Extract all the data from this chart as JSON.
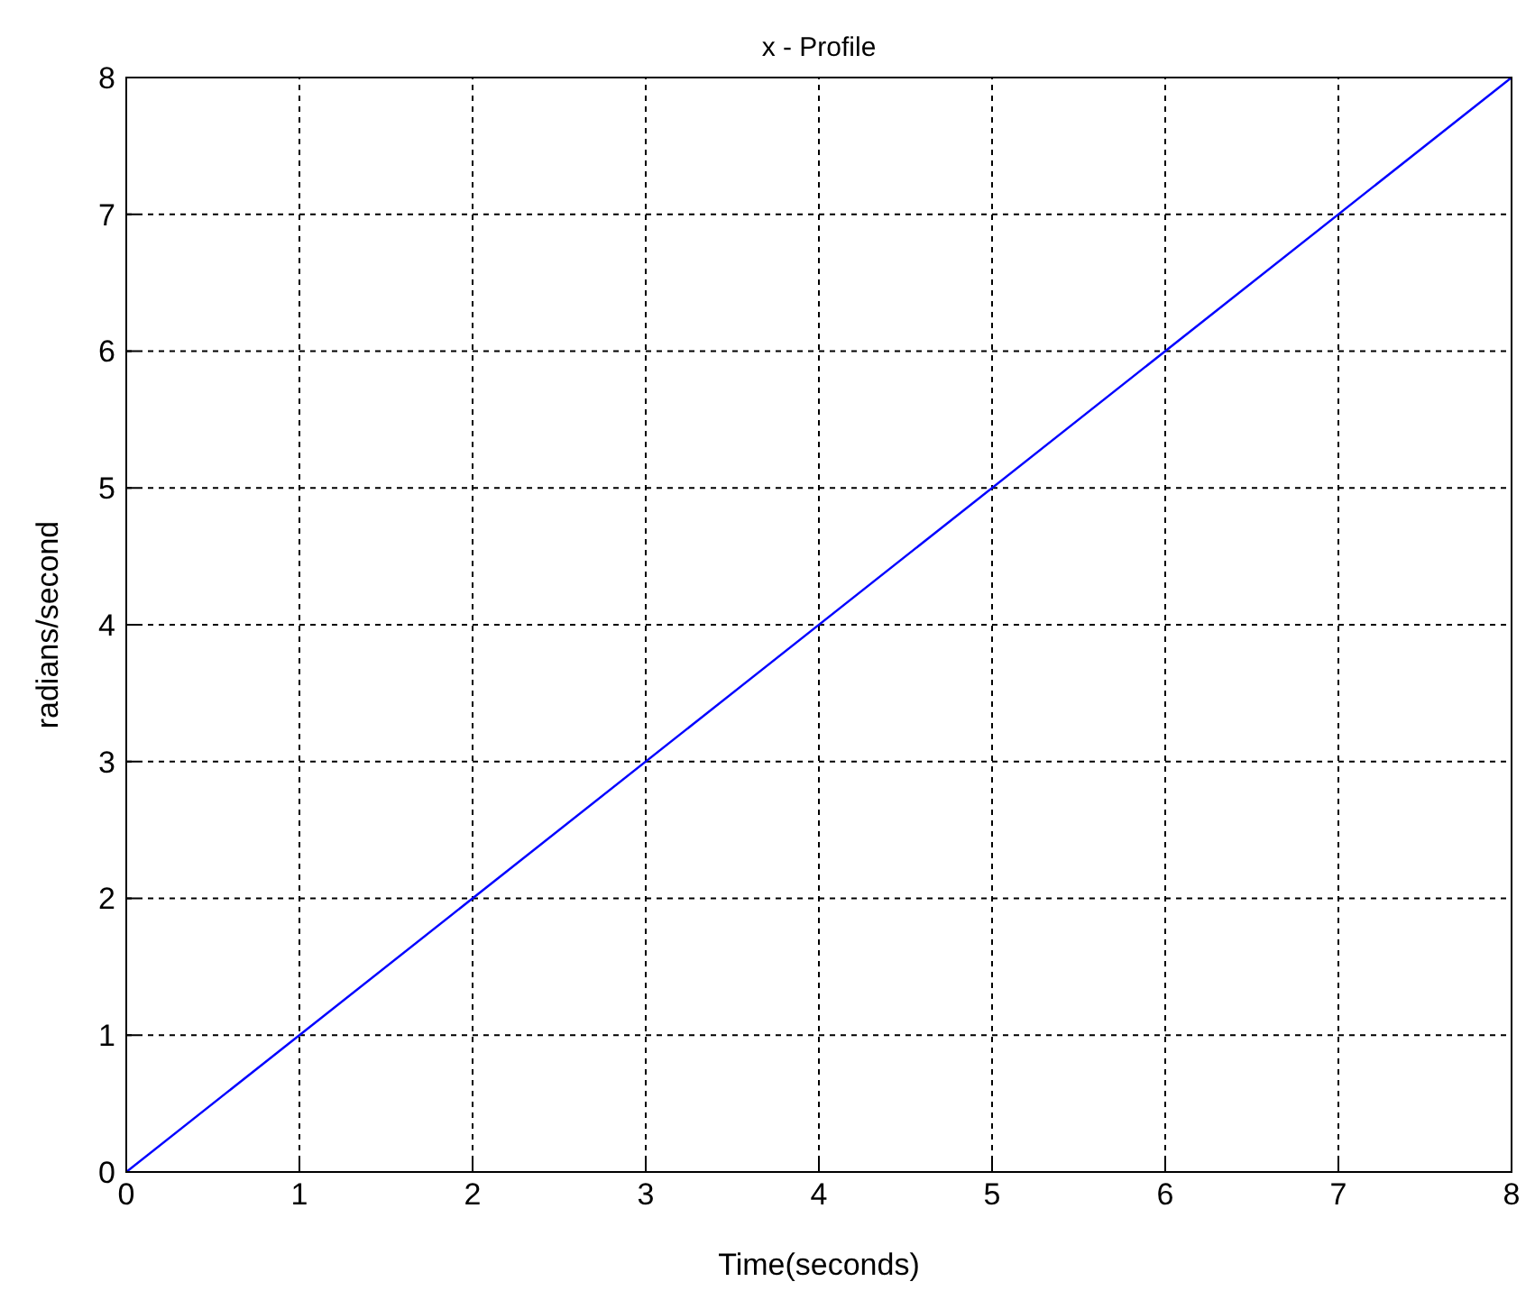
{
  "chart_data": {
    "type": "line",
    "title": "x - Profile",
    "xlabel": "Time(seconds)",
    "ylabel": "radians/second",
    "x": [
      0,
      8
    ],
    "series": [
      {
        "color": "#0000ff",
        "values": [
          0,
          8
        ]
      }
    ],
    "xlim": [
      0,
      8
    ],
    "ylim": [
      0,
      8
    ],
    "xticks": [
      0,
      1,
      2,
      3,
      4,
      5,
      6,
      7,
      8
    ],
    "yticks": [
      0,
      1,
      2,
      3,
      4,
      5,
      6,
      7,
      8
    ],
    "grid": true,
    "line_style": "solid"
  }
}
